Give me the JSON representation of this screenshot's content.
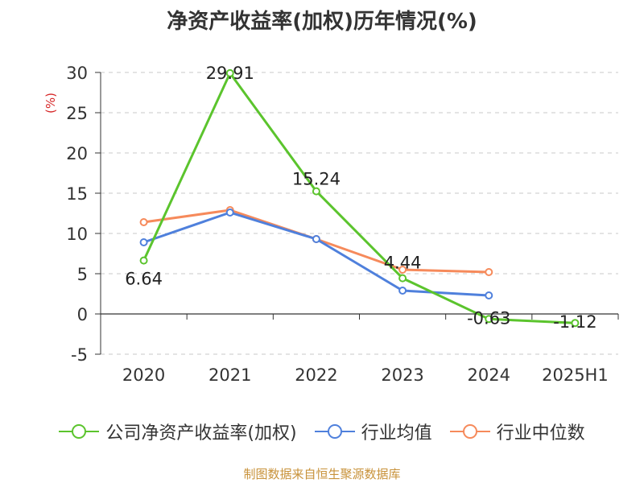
{
  "page": {
    "title": "净资产收益率(加权)历年情况(%)",
    "source": "制图数据来自恒生聚源数据库"
  },
  "chart_data": {
    "type": "line",
    "title": "净资产收益率(加权)历年情况(%)",
    "ylabel": "(%)",
    "ylim": [
      -5,
      30
    ],
    "yticks": [
      -5,
      0,
      5,
      10,
      15,
      20,
      25,
      30
    ],
    "categories": [
      "2020",
      "2021",
      "2022",
      "2023",
      "2024",
      "2025H1"
    ],
    "grid": true,
    "legend": "bottom",
    "series": [
      {
        "name": "公司净资产收益率(加权)",
        "color": "#5bc42d",
        "values": [
          6.64,
          29.91,
          15.24,
          4.44,
          -0.63,
          -1.12
        ],
        "labels": [
          "6.64",
          "29.91",
          "15.24",
          "4.44",
          "-0.63",
          "-1.12"
        ]
      },
      {
        "name": "行业均值",
        "color": "#4f80dc",
        "values": [
          8.9,
          12.6,
          9.3,
          2.9,
          2.3,
          null
        ]
      },
      {
        "name": "行业中位数",
        "color": "#f68a5b",
        "values": [
          11.4,
          12.9,
          9.3,
          5.5,
          5.2,
          null
        ]
      }
    ]
  }
}
